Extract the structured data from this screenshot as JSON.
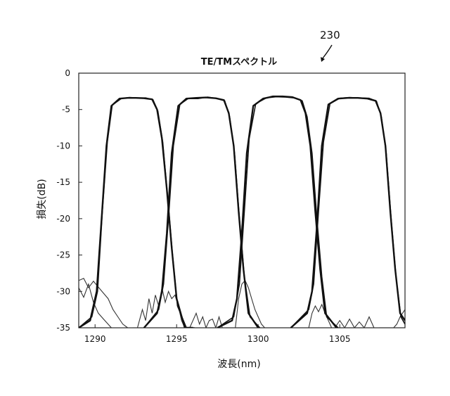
{
  "figure": {
    "ref_number": "230"
  },
  "chart_data": {
    "type": "line",
    "title": "TE/TMスペクトル",
    "xlabel": "波長(nm)",
    "ylabel": "損失(dB)",
    "xlim": [
      1289,
      1309
    ],
    "ylim": [
      -35,
      0
    ],
    "xticks": [
      1290,
      1295,
      1300,
      1305
    ],
    "yticks": [
      0,
      -5,
      -10,
      -15,
      -20,
      -25,
      -30,
      -35
    ],
    "grid": false,
    "legend": "none",
    "series": [
      {
        "channel": 1,
        "pol": "TE",
        "x": [
          1289.0,
          1289.7,
          1290.1,
          1290.4,
          1290.7,
          1291.0,
          1291.5,
          1292.0,
          1292.5,
          1293.0,
          1293.5,
          1293.8,
          1294.1,
          1294.4,
          1294.7,
          1295.0,
          1295.5,
          1296.0
        ],
        "y": [
          -35,
          -34,
          -30,
          -20,
          -10,
          -4.5,
          -3.5,
          -3.4,
          -3.4,
          -3.45,
          -3.6,
          -5,
          -9,
          -16,
          -24,
          -31,
          -35,
          -35
        ]
      },
      {
        "channel": 1,
        "pol": "TM",
        "x": [
          1289.0,
          1289.8,
          1290.15,
          1290.45,
          1290.75,
          1291.05,
          1291.6,
          1292.1,
          1292.6,
          1293.1,
          1293.55,
          1293.85,
          1294.15,
          1294.45,
          1294.75,
          1295.05,
          1295.6,
          1296.1
        ],
        "y": [
          -35,
          -33.5,
          -30,
          -19,
          -9.5,
          -4.4,
          -3.5,
          -3.35,
          -3.4,
          -3.4,
          -3.65,
          -5.2,
          -9.5,
          -17,
          -25,
          -32,
          -35,
          -35
        ]
      },
      {
        "channel": 2,
        "pol": "TE",
        "x": [
          1293.0,
          1293.8,
          1294.1,
          1294.4,
          1294.7,
          1295.1,
          1295.6,
          1296.2,
          1296.8,
          1297.4,
          1297.9,
          1298.2,
          1298.5,
          1298.8,
          1299.1,
          1299.4,
          1300.0
        ],
        "y": [
          -35,
          -33,
          -30,
          -22,
          -11,
          -4.5,
          -3.5,
          -3.4,
          -3.35,
          -3.45,
          -3.7,
          -5.5,
          -10,
          -19,
          -27,
          -33,
          -35
        ]
      },
      {
        "channel": 2,
        "pol": "TM",
        "x": [
          1293.0,
          1293.9,
          1294.2,
          1294.5,
          1294.8,
          1295.2,
          1295.7,
          1296.3,
          1296.9,
          1297.5,
          1297.95,
          1298.25,
          1298.55,
          1298.85,
          1299.15,
          1299.5,
          1300.1
        ],
        "y": [
          -35,
          -32.5,
          -29,
          -20,
          -10,
          -4.3,
          -3.5,
          -3.5,
          -3.3,
          -3.5,
          -3.8,
          -6,
          -11,
          -20,
          -28,
          -33.5,
          -35
        ]
      },
      {
        "channel": 3,
        "pol": "TE",
        "x": [
          1297.5,
          1298.4,
          1298.7,
          1299.0,
          1299.3,
          1299.7,
          1300.3,
          1300.9,
          1301.5,
          1302.1,
          1302.6,
          1302.9,
          1303.2,
          1303.5,
          1303.8,
          1304.1,
          1304.8
        ],
        "y": [
          -35,
          -34,
          -31,
          -22,
          -11,
          -4.5,
          -3.5,
          -3.2,
          -3.2,
          -3.3,
          -3.7,
          -5.5,
          -10,
          -19,
          -27,
          -33,
          -35
        ]
      },
      {
        "channel": 3,
        "pol": "TM",
        "x": [
          1297.5,
          1298.5,
          1298.85,
          1299.15,
          1299.45,
          1299.85,
          1300.5,
          1301.1,
          1301.7,
          1302.2,
          1302.7,
          1303.0,
          1303.3,
          1303.6,
          1303.9,
          1304.2,
          1304.9
        ],
        "y": [
          -35,
          -33.5,
          -29,
          -19,
          -9,
          -4.2,
          -3.4,
          -3.25,
          -3.3,
          -3.4,
          -3.8,
          -6,
          -11,
          -20,
          -28,
          -33.5,
          -35
        ]
      },
      {
        "channel": 4,
        "pol": "TE",
        "x": [
          1302.0,
          1303.0,
          1303.3,
          1303.6,
          1303.9,
          1304.3,
          1304.9,
          1305.5,
          1306.1,
          1306.7,
          1307.2,
          1307.5,
          1307.8,
          1308.1,
          1308.4,
          1308.7,
          1309.0
        ],
        "y": [
          -35,
          -33,
          -30,
          -21,
          -10,
          -4.3,
          -3.5,
          -3.4,
          -3.4,
          -3.5,
          -3.8,
          -5.5,
          -10,
          -19,
          -27,
          -33,
          -34
        ]
      },
      {
        "channel": 4,
        "pol": "TM",
        "x": [
          1302.0,
          1303.1,
          1303.4,
          1303.7,
          1304.0,
          1304.4,
          1305.0,
          1305.6,
          1306.2,
          1306.8,
          1307.25,
          1307.55,
          1307.85,
          1308.15,
          1308.45,
          1308.75,
          1309.0
        ],
        "y": [
          -35,
          -32.5,
          -29,
          -19,
          -9.5,
          -4.2,
          -3.45,
          -3.35,
          -3.4,
          -3.45,
          -3.85,
          -6,
          -11,
          -20,
          -28,
          -33.5,
          -34.5
        ]
      }
    ],
    "noise_floor": [
      {
        "x": [
          1289.0,
          1289.3,
          1289.6,
          1289.9,
          1290.2,
          1290.5,
          1290.8,
          1291.1,
          1291.4,
          1291.7,
          1292.0,
          1292.3
        ],
        "y": [
          -28.5,
          -28.2,
          -29.5,
          -28.6,
          -29.4,
          -30.2,
          -31.0,
          -32.5,
          -33.5,
          -34.5,
          -35,
          -35
        ]
      },
      {
        "x": [
          1289.0,
          1289.3,
          1289.6,
          1289.9,
          1290.2,
          1290.6,
          1291.0,
          1291.4,
          1291.8
        ],
        "y": [
          -29.5,
          -30.8,
          -29.0,
          -31.5,
          -33.0,
          -34.0,
          -35,
          -35,
          -35
        ]
      },
      {
        "x": [
          1292.6,
          1292.9,
          1293.1,
          1293.3,
          1293.5,
          1293.7,
          1293.9,
          1294.1,
          1294.3,
          1294.5,
          1294.7,
          1294.9,
          1295.1,
          1295.3,
          1295.5,
          1295.7
        ],
        "y": [
          -35,
          -32.5,
          -34.0,
          -31.0,
          -33.0,
          -30.5,
          -32.0,
          -29.5,
          -31.5,
          -30.0,
          -31.0,
          -30.5,
          -32.0,
          -34.0,
          -35,
          -35
        ]
      },
      {
        "x": [
          1295.8,
          1296.0,
          1296.2,
          1296.4,
          1296.6,
          1296.8,
          1297.0,
          1297.2,
          1297.4,
          1297.6,
          1297.8,
          1298.0
        ],
        "y": [
          -35,
          -34.0,
          -33.0,
          -34.5,
          -33.5,
          -35,
          -34.0,
          -33.8,
          -35,
          -33.5,
          -35,
          -35
        ]
      },
      {
        "x": [
          1298.6,
          1298.8,
          1299.0,
          1299.2,
          1299.4,
          1299.6,
          1299.8,
          1300.0,
          1300.2,
          1300.4
        ],
        "y": [
          -35,
          -31.0,
          -29.0,
          -28.5,
          -29.5,
          -31.0,
          -32.5,
          -33.5,
          -34.5,
          -35
        ]
      },
      {
        "x": [
          1303.1,
          1303.3,
          1303.5,
          1303.7,
          1303.9,
          1304.1,
          1304.3,
          1304.5,
          1304.7
        ],
        "y": [
          -35,
          -33.0,
          -32.0,
          -32.8,
          -31.8,
          -33.0,
          -34.0,
          -35,
          -35
        ]
      },
      {
        "x": [
          1304.7,
          1305.0,
          1305.3,
          1305.6,
          1305.9,
          1306.2,
          1306.5,
          1306.8,
          1307.1,
          1307.4
        ],
        "y": [
          -35,
          -34.0,
          -35,
          -33.8,
          -35,
          -34.2,
          -35,
          -33.5,
          -35,
          -35
        ]
      },
      {
        "x": [
          1308.3,
          1308.5,
          1308.7,
          1308.85,
          1309.0
        ],
        "y": [
          -35,
          -34.5,
          -33.5,
          -33.0,
          -32.5
        ]
      }
    ]
  }
}
